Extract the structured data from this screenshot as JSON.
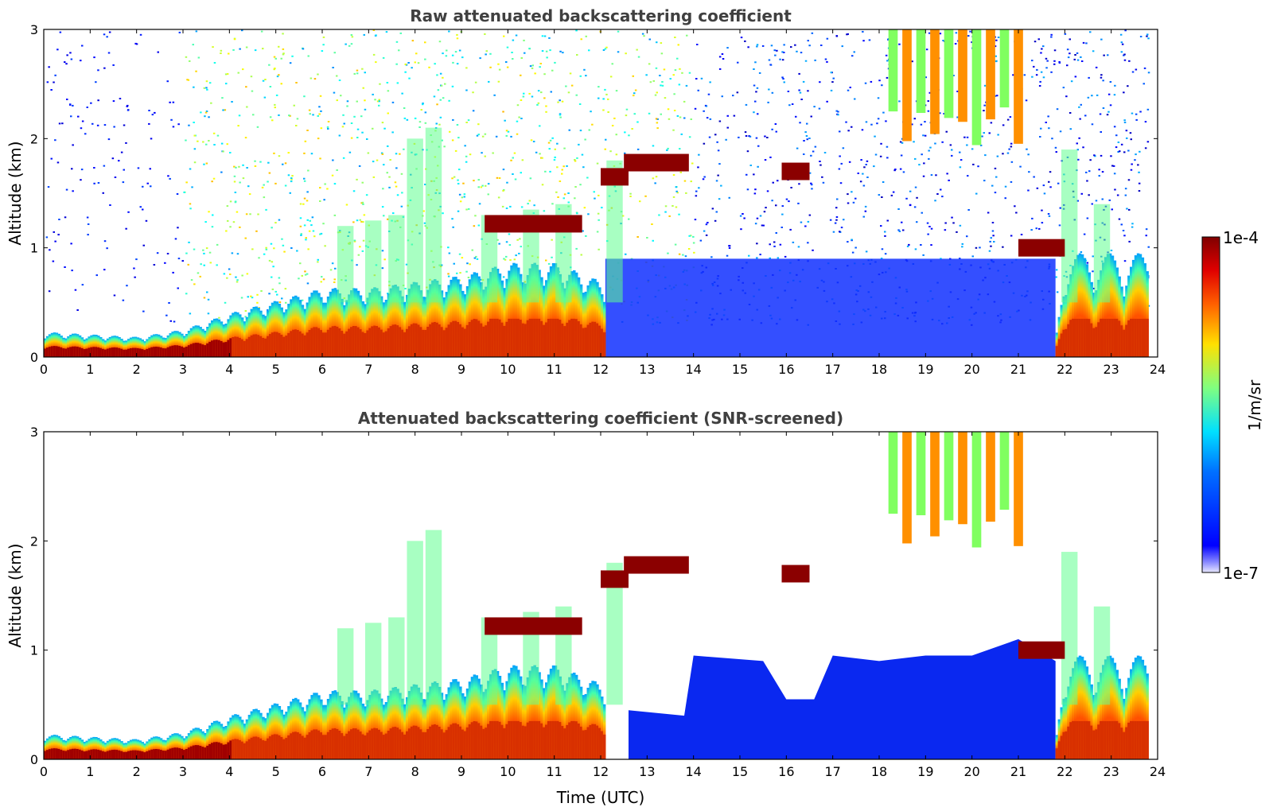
{
  "chart_data": [
    {
      "type": "heatmap",
      "title": "Raw attenuated backscattering coefficient",
      "xlabel": "",
      "ylabel": "Altitude (km)",
      "xlim": [
        0,
        24
      ],
      "ylim": [
        0,
        3
      ],
      "xticks": [
        "0",
        "1",
        "2",
        "3",
        "4",
        "5",
        "6",
        "7",
        "8",
        "9",
        "10",
        "11",
        "12",
        "13",
        "14",
        "15",
        "16",
        "17",
        "18",
        "19",
        "20",
        "21",
        "22",
        "23",
        "24"
      ],
      "yticks": [
        "0",
        "1",
        "2",
        "3"
      ],
      "screened": false
    },
    {
      "type": "heatmap",
      "title": "Attenuated backscattering coefficient (SNR-screened)",
      "xlabel": "Time (UTC)",
      "ylabel": "Altitude (km)",
      "xlim": [
        0,
        24
      ],
      "ylim": [
        0,
        3
      ],
      "xticks": [
        "0",
        "1",
        "2",
        "3",
        "4",
        "5",
        "6",
        "7",
        "8",
        "9",
        "10",
        "11",
        "12",
        "13",
        "14",
        "15",
        "16",
        "17",
        "18",
        "19",
        "20",
        "21",
        "22",
        "23",
        "24"
      ],
      "yticks": [
        "0",
        "1",
        "2",
        "3"
      ],
      "screened": true
    }
  ],
  "colorbar": {
    "label": "1/m/sr",
    "min_label": "1e-7",
    "max_label": "1e-4",
    "scale": "log",
    "colormap": "jet"
  },
  "features": {
    "boundary_layer_top_km": [
      [
        0,
        0.2
      ],
      [
        1,
        0.18
      ],
      [
        2,
        0.16
      ],
      [
        3,
        0.22
      ],
      [
        4,
        0.35
      ],
      [
        5,
        0.45
      ],
      [
        6,
        0.55
      ],
      [
        7,
        0.55
      ],
      [
        8,
        0.6
      ],
      [
        9,
        0.65
      ],
      [
        10,
        0.75
      ],
      [
        11,
        0.75
      ],
      [
        12,
        0.6
      ],
      [
        13,
        0.45
      ],
      [
        14,
        0.3
      ],
      [
        15,
        0.25
      ],
      [
        16,
        0.2
      ],
      [
        17,
        0.2
      ],
      [
        18,
        0.2
      ],
      [
        19,
        0.2
      ],
      [
        20,
        0.2
      ],
      [
        21,
        0.2
      ],
      [
        21.8,
        0.2
      ],
      [
        22,
        0.8
      ],
      [
        23,
        0.65
      ],
      [
        23.8,
        0.4
      ]
    ],
    "cloud_layers": [
      {
        "t_start": 9.5,
        "t_end": 11.6,
        "alt_km": 1.22
      },
      {
        "t_start": 12.0,
        "t_end": 12.6,
        "alt_km": 1.65
      },
      {
        "t_start": 12.5,
        "t_end": 13.9,
        "alt_km": 1.78
      },
      {
        "t_start": 15.9,
        "t_end": 16.5,
        "alt_km": 1.7
      },
      {
        "t_start": 21.0,
        "t_end": 22.0,
        "alt_km": 1.0
      }
    ],
    "cirrus": {
      "t_start": 18.2,
      "t_end": 21.2,
      "alt_base_km": 1.9,
      "alt_top_km": 3.0
    }
  }
}
